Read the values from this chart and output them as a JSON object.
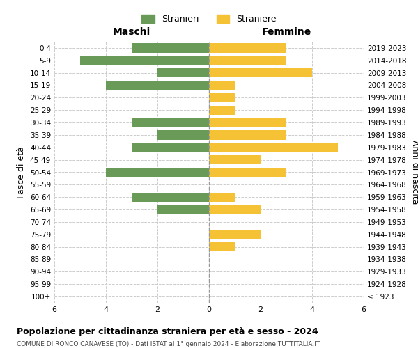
{
  "age_groups": [
    "100+",
    "95-99",
    "90-94",
    "85-89",
    "80-84",
    "75-79",
    "70-74",
    "65-69",
    "60-64",
    "55-59",
    "50-54",
    "45-49",
    "40-44",
    "35-39",
    "30-34",
    "25-29",
    "20-24",
    "15-19",
    "10-14",
    "5-9",
    "0-4"
  ],
  "birth_years": [
    "≤ 1923",
    "1924-1928",
    "1929-1933",
    "1934-1938",
    "1939-1943",
    "1944-1948",
    "1949-1953",
    "1954-1958",
    "1959-1963",
    "1964-1968",
    "1969-1973",
    "1974-1978",
    "1979-1983",
    "1984-1988",
    "1989-1993",
    "1994-1998",
    "1999-2003",
    "2004-2008",
    "2009-2013",
    "2014-2018",
    "2019-2023"
  ],
  "males": [
    0,
    0,
    0,
    0,
    0,
    0,
    0,
    2,
    3,
    0,
    4,
    0,
    3,
    2,
    3,
    0,
    0,
    4,
    2,
    5,
    3
  ],
  "females": [
    0,
    0,
    0,
    0,
    1,
    2,
    0,
    2,
    1,
    0,
    3,
    2,
    5,
    3,
    3,
    1,
    1,
    1,
    4,
    3,
    3
  ],
  "male_color": "#6a9a58",
  "female_color": "#f5c135",
  "background_color": "#ffffff",
  "grid_color": "#cccccc",
  "title": "Popolazione per cittadinanza straniera per età e sesso - 2024",
  "subtitle": "COMUNE DI RONCO CANAVESE (TO) - Dati ISTAT al 1° gennaio 2024 - Elaborazione TUTTITALIA.IT",
  "xlabel_left": "Maschi",
  "xlabel_right": "Femmine",
  "ylabel_left": "Fasce di età",
  "ylabel_right": "Anni di nascita",
  "legend_male": "Stranieri",
  "legend_female": "Straniere",
  "xlim": 6,
  "bar_height": 0.75
}
